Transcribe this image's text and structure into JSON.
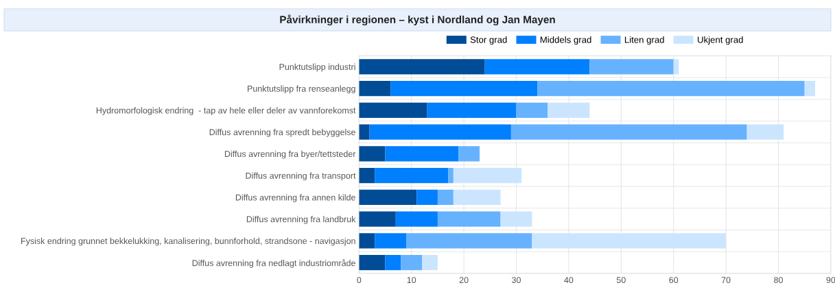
{
  "chart_data": {
    "type": "bar",
    "orientation": "horizontal",
    "stacked": true,
    "title": "Påvirkninger i regionen – kyst i Nordland og Jan Mayen",
    "categories": [
      "Punktutslipp industri",
      "Punktutslipp fra renseanlegg",
      "Hydromorfologisk endring  - tap av hele eller deler av vannforekomst",
      "Diffus avrenning fra spredt bebyggelse",
      "Diffus avrenning fra byer/tettsteder",
      "Diffus avrenning fra transport",
      "Diffus avrenning fra annen kilde",
      "Diffus avrenning fra landbruk",
      "Fysisk endring grunnet bekkelukking, kanalisering, bunnforhold, strandsone - navigasjon",
      "Diffus avrenning fra nedlagt industriområde"
    ],
    "series": [
      {
        "name": "Stor grad",
        "color": "#004c97",
        "values": [
          24,
          6,
          13,
          2,
          5,
          3,
          11,
          7,
          3,
          5
        ]
      },
      {
        "name": "Middels grad",
        "color": "#007fff",
        "values": [
          20,
          28,
          17,
          27,
          14,
          14,
          4,
          8,
          6,
          3
        ]
      },
      {
        "name": "Liten grad",
        "color": "#66b2ff",
        "values": [
          16,
          51,
          6,
          45,
          4,
          1,
          3,
          12,
          24,
          4
        ]
      },
      {
        "name": "Ukjent grad",
        "color": "#cce5ff",
        "values": [
          1,
          2,
          8,
          7,
          0,
          13,
          9,
          6,
          37,
          3
        ]
      }
    ],
    "xlim": [
      0,
      90
    ],
    "xticks": [
      0,
      10,
      20,
      30,
      40,
      50,
      60,
      70,
      80,
      90
    ],
    "grid": true,
    "legend": "top"
  }
}
